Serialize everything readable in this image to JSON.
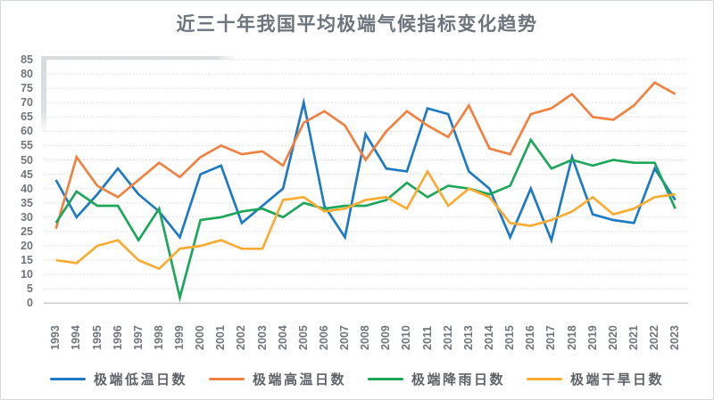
{
  "title": "近三十年我国平均极端气候指标变化趋势",
  "chart_data": {
    "type": "line",
    "title": "近三十年我国平均极端气候指标变化趋势",
    "x": [
      1993,
      1994,
      1995,
      1996,
      1997,
      1998,
      1999,
      2000,
      2001,
      2002,
      2003,
      2004,
      2005,
      2006,
      2007,
      2008,
      2009,
      2010,
      2011,
      2012,
      2013,
      2014,
      2015,
      2016,
      2017,
      2018,
      2019,
      2020,
      2021,
      2022,
      2023
    ],
    "series": [
      {
        "key": "extreme-low-temp-days",
        "name": "极端低温日数",
        "color": "#1E7AC4",
        "values": [
          43,
          30,
          38,
          47,
          38,
          32,
          23,
          45,
          48,
          28,
          34,
          40,
          70,
          34,
          23,
          59,
          47,
          46,
          68,
          66,
          46,
          40,
          23,
          40,
          22,
          51,
          31,
          29,
          28,
          47,
          36
        ]
      },
      {
        "key": "extreme-high-temp-days",
        "name": "极端高温日数",
        "color": "#F08241",
        "values": [
          26,
          51,
          41,
          37,
          43,
          49,
          44,
          51,
          55,
          52,
          53,
          48,
          63,
          67,
          62,
          50,
          60,
          67,
          62,
          58,
          69,
          54,
          52,
          66,
          68,
          73,
          65,
          64,
          69,
          77,
          73
        ]
      },
      {
        "key": "extreme-rain-days",
        "name": "极端降雨日数",
        "color": "#1EA65A",
        "values": [
          28,
          39,
          34,
          34,
          22,
          33,
          2,
          29,
          30,
          32,
          33,
          30,
          35,
          33,
          34,
          34,
          36,
          42,
          37,
          41,
          40,
          38,
          41,
          57,
          47,
          50,
          48,
          50,
          49,
          49,
          33
        ]
      },
      {
        "key": "extreme-drought-days",
        "name": "极端干旱日数",
        "color": "#FAAC32",
        "values": [
          15,
          14,
          20,
          22,
          15,
          12,
          19,
          20,
          22,
          19,
          19,
          36,
          37,
          32,
          33,
          36,
          37,
          33,
          46,
          34,
          40,
          37,
          28,
          27,
          29,
          32,
          37,
          31,
          33,
          37,
          38
        ]
      }
    ],
    "ylim": [
      0,
      85
    ],
    "y_ticks": [
      0,
      5,
      10,
      15,
      20,
      25,
      30,
      35,
      40,
      45,
      50,
      55,
      60,
      65,
      70,
      75,
      80,
      85
    ],
    "grid": "horizontal-dotted",
    "legend_position": "bottom",
    "x_label_rotation": -90
  },
  "colors": {
    "gridline": "#d8d8d8",
    "axis_line": "#c7cbce",
    "tick_text": "#70757a",
    "title_text": "#6e747c",
    "legend_text": "#5f6368",
    "background": "#ffffff"
  }
}
